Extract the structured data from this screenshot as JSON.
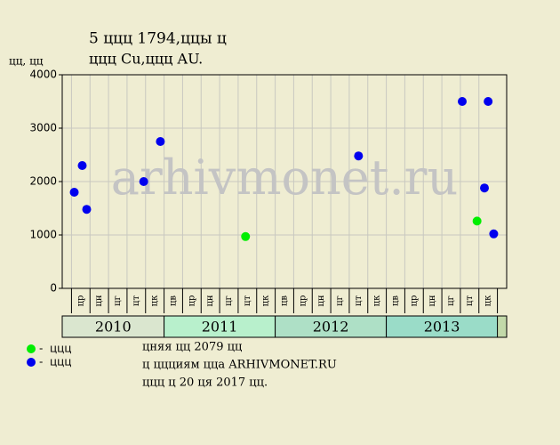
{
  "chart_data": {
    "type": "scatter",
    "title": "5 ццц 1794,ццы ц",
    "subtitle": "ццц Cu,ццц AU.",
    "y_label": "цц, цц",
    "watermark": "arhivmonet.ru",
    "categories": [
      "цр",
      "цн",
      "цг",
      "цт",
      "цк",
      "цв",
      "цр",
      "цн",
      "цг",
      "цт",
      "цк",
      "цв",
      "цр",
      "цн",
      "цг",
      "цт",
      "цк",
      "цв",
      "цр",
      "цн",
      "цг",
      "цт",
      "цк"
    ],
    "year_labels": [
      "2010",
      "2011",
      "2012",
      "2013"
    ],
    "xlim": [
      -0.5,
      23.5
    ],
    "ylim": [
      0,
      4000
    ],
    "yticks": [
      0,
      1000,
      2000,
      3000,
      4000
    ],
    "grid": true,
    "series": [
      {
        "name": "ццц",
        "color": "#00ee00",
        "x": [
          9.4,
          21.9
        ],
        "values": [
          970,
          1260
        ]
      },
      {
        "name": "ццц",
        "color": "#0000ee",
        "x": [
          0.15,
          0.58,
          0.82,
          3.9,
          4.8,
          15.5,
          21.1,
          22.3,
          22.5,
          22.8
        ],
        "values": [
          1800,
          2300,
          1480,
          2000,
          2750,
          2480,
          3500,
          1880,
          3500,
          1020
        ]
      }
    ],
    "notes": [
      "цняя цц 2079 цц",
      "ц ццциям цца ARHIVMONET.RU",
      "ццц ц 20 ця 2017 цц."
    ]
  }
}
